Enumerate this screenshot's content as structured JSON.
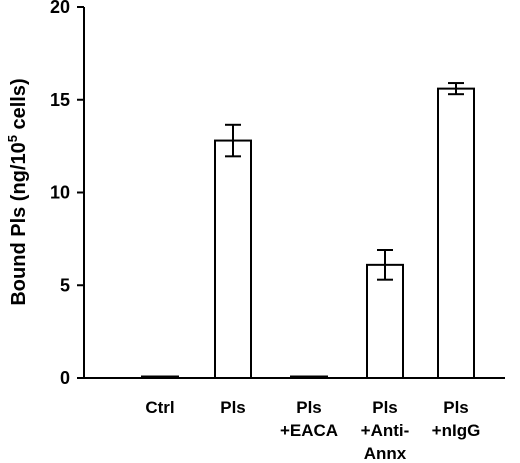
{
  "chart_data": {
    "type": "bar",
    "title": "",
    "xlabel": "",
    "ylabel": {
      "prefix": "Bound Pls (ng/10",
      "superscript": "5",
      "suffix": " cells)"
    },
    "ylim": [
      0,
      20
    ],
    "yticks": [
      "0",
      "5",
      "10",
      "15",
      "20"
    ],
    "categories": [
      [
        "Ctrl"
      ],
      [
        "Pls"
      ],
      [
        "Pls",
        "+EACA"
      ],
      [
        "Pls",
        "+Anti-",
        "Annx"
      ],
      [
        "Pls",
        "+nIgG"
      ]
    ],
    "values": [
      0.05,
      12.8,
      0.07,
      6.1,
      15.6
    ],
    "errors": [
      0.0,
      0.85,
      0.0,
      0.8,
      0.3
    ],
    "bar_fill": "#ffffff",
    "bar_stroke": "#000000",
    "grid": false,
    "legend": "none"
  }
}
